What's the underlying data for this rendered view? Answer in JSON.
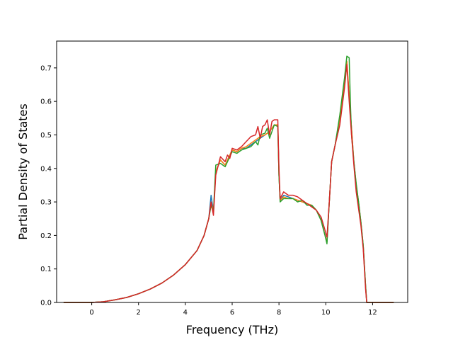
{
  "chart_data": {
    "type": "line",
    "title": "",
    "xlabel": "Frequency (THz)",
    "ylabel": "Partial Density of States",
    "xlim": [
      -1.5,
      13.5
    ],
    "ylim": [
      0.0,
      0.78
    ],
    "xticks": [
      0,
      2,
      4,
      6,
      8,
      10,
      12
    ],
    "yticks": [
      0.0,
      0.1,
      0.2,
      0.3,
      0.4,
      0.5,
      0.6,
      0.7
    ],
    "xtick_labels": [
      "0",
      "2",
      "4",
      "6",
      "8",
      "10",
      "12"
    ],
    "ytick_labels": [
      "0.0",
      "0.1",
      "0.2",
      "0.3",
      "0.4",
      "0.5",
      "0.6",
      "0.7"
    ],
    "grid": false,
    "legend": "none",
    "series": [
      {
        "color": "#1f77b4",
        "points": [
          [
            -1.2,
            0
          ],
          [
            0,
            0
          ],
          [
            0.5,
            0.002
          ],
          [
            1,
            0.008
          ],
          [
            1.5,
            0.015
          ],
          [
            2,
            0.026
          ],
          [
            2.5,
            0.04
          ],
          [
            3,
            0.058
          ],
          [
            3.5,
            0.082
          ],
          [
            4,
            0.113
          ],
          [
            4.5,
            0.155
          ],
          [
            4.8,
            0.2
          ],
          [
            5.0,
            0.25
          ],
          [
            5.1,
            0.32
          ],
          [
            5.2,
            0.27
          ],
          [
            5.3,
            0.39
          ],
          [
            5.5,
            0.425
          ],
          [
            5.7,
            0.41
          ],
          [
            5.9,
            0.44
          ],
          [
            6.0,
            0.455
          ],
          [
            6.2,
            0.45
          ],
          [
            6.4,
            0.46
          ],
          [
            6.6,
            0.46
          ],
          [
            6.8,
            0.47
          ],
          [
            7.0,
            0.48
          ],
          [
            7.2,
            0.49
          ],
          [
            7.4,
            0.5
          ],
          [
            7.6,
            0.51
          ],
          [
            7.8,
            0.53
          ],
          [
            7.95,
            0.53
          ],
          [
            8.0,
            0.38
          ],
          [
            8.05,
            0.305
          ],
          [
            8.2,
            0.32
          ],
          [
            8.4,
            0.315
          ],
          [
            8.6,
            0.31
          ],
          [
            8.8,
            0.305
          ],
          [
            9.0,
            0.3
          ],
          [
            9.2,
            0.295
          ],
          [
            9.4,
            0.29
          ],
          [
            9.6,
            0.275
          ],
          [
            9.8,
            0.245
          ],
          [
            9.95,
            0.205
          ],
          [
            10.05,
            0.18
          ],
          [
            10.15,
            0.3
          ],
          [
            10.25,
            0.42
          ],
          [
            10.4,
            0.47
          ],
          [
            10.6,
            0.55
          ],
          [
            10.8,
            0.66
          ],
          [
            10.9,
            0.71
          ],
          [
            11.0,
            0.62
          ],
          [
            11.1,
            0.52
          ],
          [
            11.2,
            0.42
          ],
          [
            11.3,
            0.35
          ],
          [
            11.4,
            0.3
          ],
          [
            11.5,
            0.24
          ],
          [
            11.6,
            0.17
          ],
          [
            11.7,
            0.05
          ],
          [
            11.75,
            0.0
          ],
          [
            12.9,
            0
          ]
        ]
      },
      {
        "color": "#ff7f0e",
        "points": [
          [
            -1.2,
            0
          ],
          [
            0,
            0
          ],
          [
            0.5,
            0.002
          ],
          [
            1,
            0.008
          ],
          [
            1.5,
            0.015
          ],
          [
            2,
            0.026
          ],
          [
            2.5,
            0.04
          ],
          [
            3,
            0.058
          ],
          [
            3.5,
            0.082
          ],
          [
            4,
            0.113
          ],
          [
            4.5,
            0.155
          ],
          [
            4.8,
            0.2
          ],
          [
            5.0,
            0.25
          ],
          [
            5.1,
            0.3
          ],
          [
            5.2,
            0.27
          ],
          [
            5.3,
            0.39
          ],
          [
            5.5,
            0.425
          ],
          [
            5.7,
            0.41
          ],
          [
            5.9,
            0.44
          ],
          [
            6.0,
            0.455
          ],
          [
            6.2,
            0.45
          ],
          [
            6.4,
            0.46
          ],
          [
            6.6,
            0.465
          ],
          [
            6.8,
            0.475
          ],
          [
            7.0,
            0.485
          ],
          [
            7.2,
            0.495
          ],
          [
            7.4,
            0.5
          ],
          [
            7.6,
            0.51
          ],
          [
            7.8,
            0.53
          ],
          [
            7.95,
            0.53
          ],
          [
            8.0,
            0.38
          ],
          [
            8.05,
            0.305
          ],
          [
            8.2,
            0.315
          ],
          [
            8.4,
            0.31
          ],
          [
            8.6,
            0.31
          ],
          [
            8.8,
            0.305
          ],
          [
            9.0,
            0.3
          ],
          [
            9.2,
            0.295
          ],
          [
            9.4,
            0.29
          ],
          [
            9.6,
            0.275
          ],
          [
            9.8,
            0.245
          ],
          [
            9.95,
            0.205
          ],
          [
            10.05,
            0.18
          ],
          [
            10.15,
            0.3
          ],
          [
            10.25,
            0.42
          ],
          [
            10.4,
            0.47
          ],
          [
            10.6,
            0.55
          ],
          [
            10.8,
            0.66
          ],
          [
            10.9,
            0.72
          ],
          [
            11.0,
            0.62
          ],
          [
            11.1,
            0.52
          ],
          [
            11.2,
            0.42
          ],
          [
            11.3,
            0.35
          ],
          [
            11.4,
            0.3
          ],
          [
            11.5,
            0.24
          ],
          [
            11.6,
            0.17
          ],
          [
            11.7,
            0.05
          ],
          [
            11.75,
            0.0
          ],
          [
            12.9,
            0
          ]
        ]
      },
      {
        "color": "#2ca02c",
        "points": [
          [
            -1.2,
            0
          ],
          [
            0,
            0
          ],
          [
            0.5,
            0.002
          ],
          [
            1,
            0.008
          ],
          [
            1.5,
            0.015
          ],
          [
            2,
            0.026
          ],
          [
            2.5,
            0.04
          ],
          [
            3,
            0.058
          ],
          [
            3.5,
            0.082
          ],
          [
            4,
            0.113
          ],
          [
            4.5,
            0.155
          ],
          [
            4.8,
            0.2
          ],
          [
            5.0,
            0.25
          ],
          [
            5.1,
            0.29
          ],
          [
            5.2,
            0.27
          ],
          [
            5.3,
            0.41
          ],
          [
            5.5,
            0.415
          ],
          [
            5.7,
            0.405
          ],
          [
            5.9,
            0.435
          ],
          [
            6.0,
            0.45
          ],
          [
            6.2,
            0.445
          ],
          [
            6.4,
            0.455
          ],
          [
            6.6,
            0.46
          ],
          [
            6.8,
            0.465
          ],
          [
            7.0,
            0.48
          ],
          [
            7.1,
            0.47
          ],
          [
            7.2,
            0.5
          ],
          [
            7.4,
            0.505
          ],
          [
            7.5,
            0.52
          ],
          [
            7.6,
            0.49
          ],
          [
            7.8,
            0.53
          ],
          [
            7.95,
            0.525
          ],
          [
            8.0,
            0.38
          ],
          [
            8.05,
            0.3
          ],
          [
            8.2,
            0.31
          ],
          [
            8.4,
            0.31
          ],
          [
            8.6,
            0.31
          ],
          [
            8.8,
            0.3
          ],
          [
            9.0,
            0.305
          ],
          [
            9.2,
            0.29
          ],
          [
            9.4,
            0.29
          ],
          [
            9.6,
            0.275
          ],
          [
            9.8,
            0.245
          ],
          [
            9.95,
            0.205
          ],
          [
            10.05,
            0.175
          ],
          [
            10.15,
            0.3
          ],
          [
            10.25,
            0.42
          ],
          [
            10.4,
            0.47
          ],
          [
            10.6,
            0.56
          ],
          [
            10.8,
            0.67
          ],
          [
            10.9,
            0.735
          ],
          [
            11.0,
            0.73
          ],
          [
            11.05,
            0.6
          ],
          [
            11.1,
            0.5
          ],
          [
            11.2,
            0.42
          ],
          [
            11.3,
            0.355
          ],
          [
            11.4,
            0.3
          ],
          [
            11.5,
            0.24
          ],
          [
            11.6,
            0.17
          ],
          [
            11.7,
            0.05
          ],
          [
            11.75,
            0.0
          ],
          [
            12.9,
            0
          ]
        ]
      },
      {
        "color": "#d62728",
        "points": [
          [
            -1.2,
            0
          ],
          [
            0,
            0
          ],
          [
            0.5,
            0.002
          ],
          [
            1,
            0.008
          ],
          [
            1.5,
            0.015
          ],
          [
            2,
            0.026
          ],
          [
            2.5,
            0.04
          ],
          [
            3,
            0.058
          ],
          [
            3.5,
            0.082
          ],
          [
            4,
            0.113
          ],
          [
            4.5,
            0.155
          ],
          [
            4.8,
            0.2
          ],
          [
            5.0,
            0.25
          ],
          [
            5.1,
            0.3
          ],
          [
            5.2,
            0.26
          ],
          [
            5.3,
            0.38
          ],
          [
            5.5,
            0.435
          ],
          [
            5.7,
            0.42
          ],
          [
            5.8,
            0.44
          ],
          [
            5.9,
            0.43
          ],
          [
            6.0,
            0.46
          ],
          [
            6.2,
            0.455
          ],
          [
            6.4,
            0.465
          ],
          [
            6.6,
            0.48
          ],
          [
            6.8,
            0.495
          ],
          [
            7.0,
            0.5
          ],
          [
            7.1,
            0.525
          ],
          [
            7.2,
            0.49
          ],
          [
            7.3,
            0.525
          ],
          [
            7.4,
            0.53
          ],
          [
            7.5,
            0.545
          ],
          [
            7.6,
            0.5
          ],
          [
            7.7,
            0.54
          ],
          [
            7.8,
            0.545
          ],
          [
            7.95,
            0.545
          ],
          [
            8.0,
            0.4
          ],
          [
            8.05,
            0.31
          ],
          [
            8.2,
            0.33
          ],
          [
            8.4,
            0.32
          ],
          [
            8.6,
            0.32
          ],
          [
            8.8,
            0.315
          ],
          [
            9.0,
            0.305
          ],
          [
            9.2,
            0.295
          ],
          [
            9.4,
            0.285
          ],
          [
            9.6,
            0.275
          ],
          [
            9.8,
            0.255
          ],
          [
            9.95,
            0.22
          ],
          [
            10.05,
            0.195
          ],
          [
            10.15,
            0.3
          ],
          [
            10.25,
            0.42
          ],
          [
            10.4,
            0.47
          ],
          [
            10.6,
            0.53
          ],
          [
            10.8,
            0.64
          ],
          [
            10.9,
            0.71
          ],
          [
            11.0,
            0.6
          ],
          [
            11.1,
            0.5
          ],
          [
            11.2,
            0.41
          ],
          [
            11.3,
            0.33
          ],
          [
            11.4,
            0.28
          ],
          [
            11.5,
            0.23
          ],
          [
            11.6,
            0.16
          ],
          [
            11.7,
            0.04
          ],
          [
            11.75,
            0.0
          ],
          [
            12.9,
            0
          ]
        ]
      }
    ]
  }
}
